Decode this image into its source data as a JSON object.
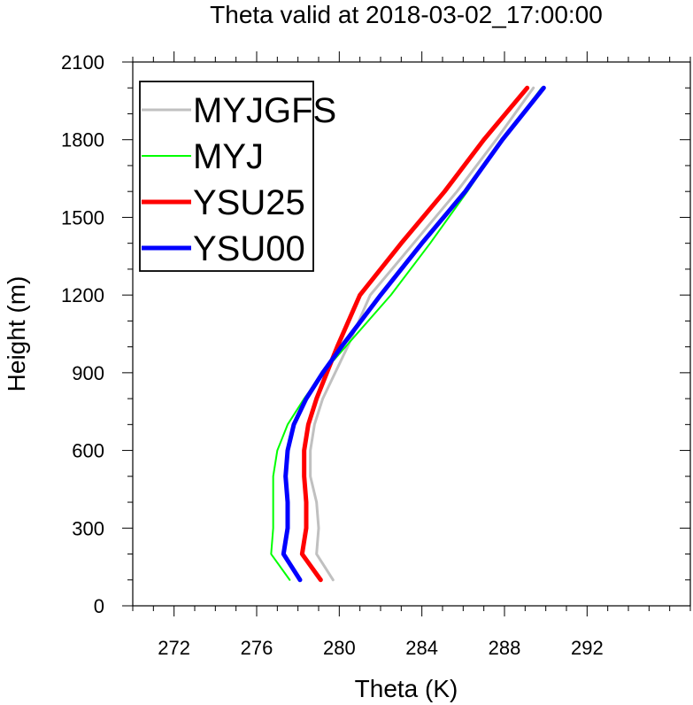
{
  "chart_data": {
    "type": "line",
    "title": "Theta valid at 2018-03-02_17:00:00",
    "xlabel": "Theta (K)",
    "ylabel": "Height (m)",
    "xlim": [
      270,
      297
    ],
    "ylim": [
      0,
      2100
    ],
    "x_ticks": [
      272,
      276,
      280,
      284,
      288,
      292
    ],
    "y_ticks": [
      0,
      300,
      600,
      900,
      1200,
      1500,
      1800,
      2100
    ],
    "grid": false,
    "legend_placement": "top-left",
    "series": [
      {
        "name": "MYJGFS",
        "color": "#c0c0c0",
        "width": 3,
        "points": [
          {
            "x": 279.7,
            "y": 100
          },
          {
            "x": 278.9,
            "y": 200
          },
          {
            "x": 279.0,
            "y": 300
          },
          {
            "x": 278.9,
            "y": 400
          },
          {
            "x": 278.6,
            "y": 500
          },
          {
            "x": 278.6,
            "y": 600
          },
          {
            "x": 278.8,
            "y": 700
          },
          {
            "x": 279.2,
            "y": 800
          },
          {
            "x": 279.8,
            "y": 900
          },
          {
            "x": 280.4,
            "y": 1000
          },
          {
            "x": 281.5,
            "y": 1200
          },
          {
            "x": 283.6,
            "y": 1400
          },
          {
            "x": 285.7,
            "y": 1600
          },
          {
            "x": 287.6,
            "y": 1800
          },
          {
            "x": 289.4,
            "y": 2000
          }
        ]
      },
      {
        "name": "MYJ",
        "color": "#00ff00",
        "width": 2,
        "points": [
          {
            "x": 277.6,
            "y": 100
          },
          {
            "x": 276.7,
            "y": 200
          },
          {
            "x": 276.8,
            "y": 300
          },
          {
            "x": 276.8,
            "y": 400
          },
          {
            "x": 276.8,
            "y": 500
          },
          {
            "x": 277.0,
            "y": 600
          },
          {
            "x": 277.5,
            "y": 700
          },
          {
            "x": 278.3,
            "y": 800
          },
          {
            "x": 279.2,
            "y": 900
          },
          {
            "x": 280.3,
            "y": 1000
          },
          {
            "x": 282.5,
            "y": 1200
          },
          {
            "x": 284.4,
            "y": 1400
          },
          {
            "x": 286.2,
            "y": 1600
          },
          {
            "x": 287.9,
            "y": 1800
          },
          {
            "x": 289.8,
            "y": 2000
          }
        ]
      },
      {
        "name": "YSU25",
        "color": "#ff0000",
        "width": 5,
        "points": [
          {
            "x": 279.1,
            "y": 100
          },
          {
            "x": 278.2,
            "y": 200
          },
          {
            "x": 278.4,
            "y": 300
          },
          {
            "x": 278.4,
            "y": 400
          },
          {
            "x": 278.3,
            "y": 500
          },
          {
            "x": 278.3,
            "y": 600
          },
          {
            "x": 278.5,
            "y": 700
          },
          {
            "x": 278.9,
            "y": 800
          },
          {
            "x": 279.4,
            "y": 900
          },
          {
            "x": 279.9,
            "y": 1000
          },
          {
            "x": 281.0,
            "y": 1200
          },
          {
            "x": 283.0,
            "y": 1400
          },
          {
            "x": 285.1,
            "y": 1600
          },
          {
            "x": 287.0,
            "y": 1800
          },
          {
            "x": 289.1,
            "y": 2000
          }
        ]
      },
      {
        "name": "YSU00",
        "color": "#0000ff",
        "width": 5,
        "points": [
          {
            "x": 278.1,
            "y": 100
          },
          {
            "x": 277.3,
            "y": 200
          },
          {
            "x": 277.5,
            "y": 300
          },
          {
            "x": 277.5,
            "y": 400
          },
          {
            "x": 277.4,
            "y": 500
          },
          {
            "x": 277.5,
            "y": 600
          },
          {
            "x": 277.8,
            "y": 700
          },
          {
            "x": 278.4,
            "y": 800
          },
          {
            "x": 279.2,
            "y": 900
          },
          {
            "x": 280.1,
            "y": 1000
          },
          {
            "x": 282.0,
            "y": 1200
          },
          {
            "x": 284.0,
            "y": 1400
          },
          {
            "x": 286.1,
            "y": 1600
          },
          {
            "x": 287.9,
            "y": 1800
          },
          {
            "x": 289.9,
            "y": 2000
          }
        ]
      }
    ]
  }
}
